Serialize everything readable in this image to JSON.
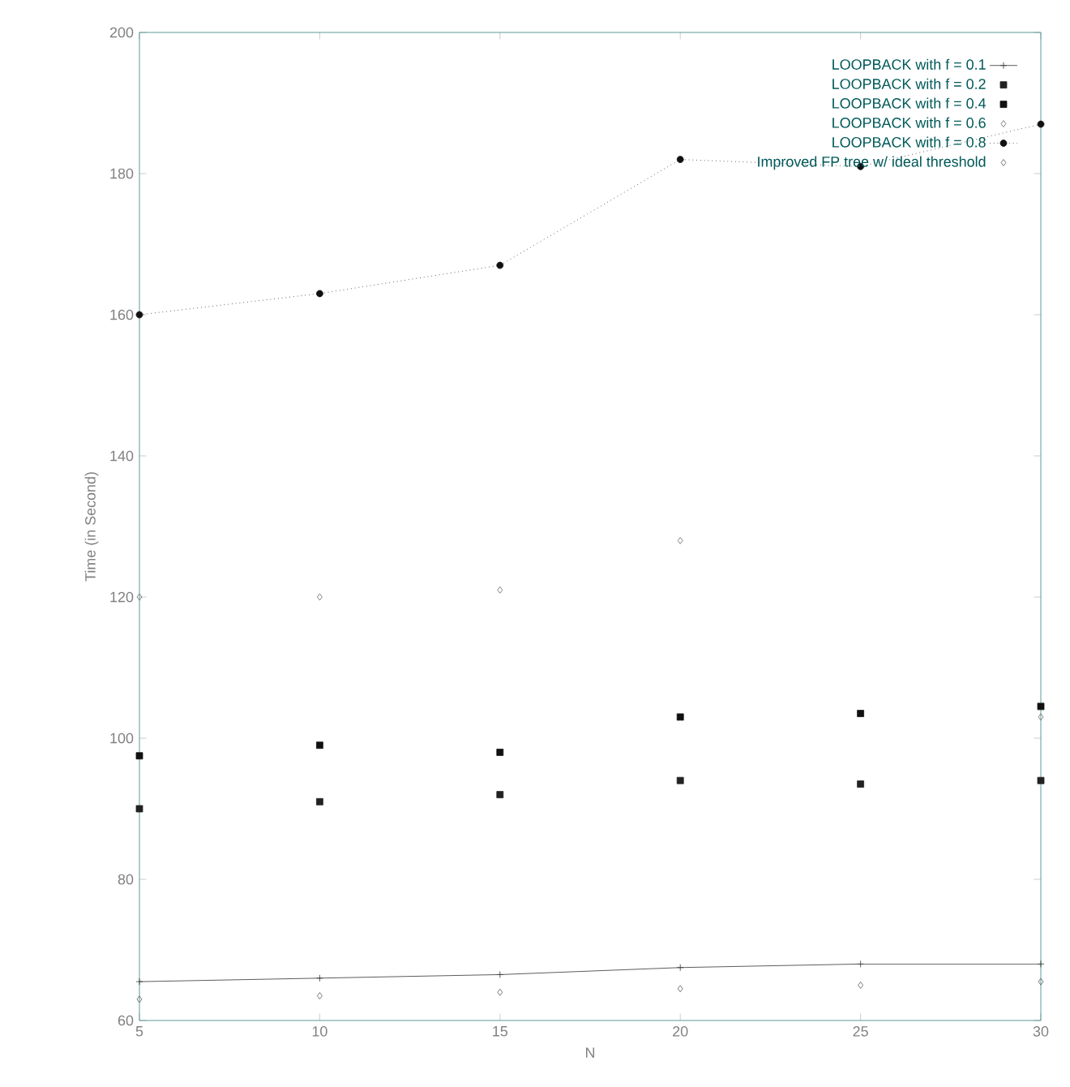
{
  "chart_data": {
    "type": "scatter",
    "xlabel": "N",
    "ylabel": "Time (in Second)",
    "x": [
      5,
      10,
      15,
      20,
      25,
      30
    ],
    "series": [
      {
        "name": "LOOPBACK with f = 0.1",
        "type": "line",
        "color": "#333333",
        "marker": "cross",
        "line_style": "solid",
        "values": [
          65.5,
          66,
          66.5,
          67.5,
          68,
          68
        ]
      },
      {
        "name": "LOOPBACK with f = 0.2",
        "color": "#222222",
        "marker": "square",
        "values": [
          90,
          91,
          92,
          94,
          93.5,
          94
        ]
      },
      {
        "name": "LOOPBACK with f = 0.4",
        "color": "#111111",
        "marker": "square",
        "values": [
          97.5,
          99,
          98,
          103,
          103.5,
          104.5
        ]
      },
      {
        "name": "LOOPBACK with f = 0.6",
        "color": "#666666",
        "marker": "diamond",
        "values": [
          120,
          120,
          121,
          128,
          null,
          103
        ]
      },
      {
        "name": "LOOPBACK with f = 0.8",
        "type": "line",
        "color": "#111111",
        "marker": "circle",
        "line_style": "dotted",
        "values": [
          160,
          163,
          167,
          182,
          181,
          187
        ]
      },
      {
        "name": "Improved FP tree w/ ideal threshold",
        "color": "#555555",
        "marker": "diamond",
        "values": [
          63,
          63.5,
          64,
          64.5,
          65,
          65.5
        ]
      }
    ],
    "xlim": [
      5,
      30
    ],
    "xticks": [
      5,
      10,
      15,
      20,
      25,
      30
    ],
    "ylim": [
      60,
      200
    ],
    "yticks": [
      60,
      80,
      100,
      120,
      140,
      160,
      180,
      200
    ],
    "grid": false,
    "legend": "top right"
  }
}
